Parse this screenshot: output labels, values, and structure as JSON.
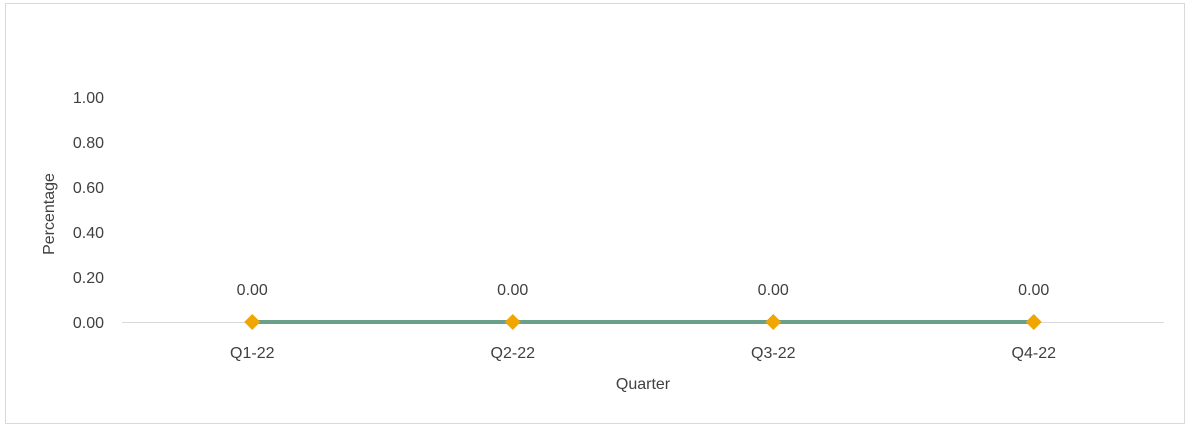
{
  "chart_data": {
    "type": "line",
    "title": "",
    "xlabel": "Quarter",
    "ylabel": "Percentage",
    "categories": [
      "Q1-22",
      "Q2-22",
      "Q3-22",
      "Q4-22"
    ],
    "series": [
      {
        "values": [
          0.0,
          0.0,
          0.0,
          0.0
        ],
        "data_labels": [
          "0.00",
          "0.00",
          "0.00",
          "0.00"
        ],
        "line_color": "#6a9f8a",
        "marker_color": "#f0a500",
        "marker": "diamond"
      }
    ],
    "ylim": [
      0,
      1
    ],
    "yticks": [
      0,
      0.2,
      0.4,
      0.6,
      0.8,
      1.0
    ],
    "ytick_labels": [
      "0.00",
      "0.20",
      "0.40",
      "0.60",
      "0.80",
      "1.00"
    ],
    "grid": false,
    "legend": "none",
    "axis_color": "#d9d9d9",
    "text_color": "#404040"
  }
}
